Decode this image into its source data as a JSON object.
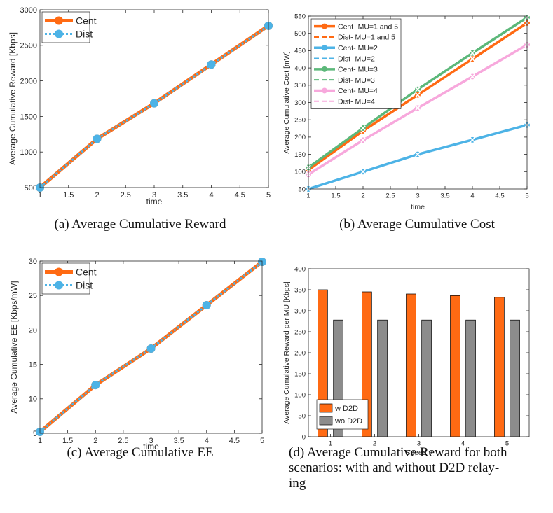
{
  "captions": {
    "a": "(a) Average Cumulative Reward",
    "b": "(b) Average Cumulative Cost",
    "c": "(c) Average Cumulative EE",
    "d_line1": "(d) Average Cumulative Reward for both",
    "d_line2": "scenarios: with and without D2D relay-",
    "d_line3": "ing"
  },
  "chart_data": [
    {
      "id": "a",
      "type": "line",
      "xlabel": "time",
      "ylabel": "Average Cumulative Reward [Kbps]",
      "xlim": [
        1,
        5
      ],
      "ylim": [
        500,
        3000
      ],
      "xticks": [
        1,
        1.5,
        2,
        2.5,
        3,
        3.5,
        4,
        4.5,
        5
      ],
      "yticks": [
        500,
        1000,
        1500,
        2000,
        2500,
        3000
      ],
      "legend_position": "top-left",
      "series": [
        {
          "name": "Cent",
          "color": "#ff6a13",
          "style": "solid",
          "marker": "circle",
          "x": [
            1,
            2,
            3,
            4,
            5
          ],
          "y": [
            500,
            1185,
            1685,
            2230,
            2775
          ]
        },
        {
          "name": "Dist",
          "color": "#4db3e6",
          "style": "dotted",
          "marker": "circle",
          "x": [
            1,
            2,
            3,
            4,
            5
          ],
          "y": [
            500,
            1185,
            1685,
            2230,
            2775
          ]
        }
      ]
    },
    {
      "id": "b",
      "type": "line",
      "xlabel": "time",
      "ylabel": "Average Cumulative Cost [mW]",
      "xlim": [
        1,
        5
      ],
      "ylim": [
        50,
        550
      ],
      "xticks": [
        1,
        1.5,
        2,
        2.5,
        3,
        3.5,
        4,
        4.5,
        5
      ],
      "yticks": [
        50,
        100,
        150,
        200,
        250,
        300,
        350,
        400,
        450,
        500,
        550
      ],
      "legend_position": "top-left",
      "series": [
        {
          "name": "Cent- MU=1 and 5",
          "color": "#ff6a13",
          "style": "solid",
          "marker": "circle",
          "x": [
            1,
            2,
            3,
            4,
            5
          ],
          "y": [
            105,
            218,
            322,
            426,
            530
          ]
        },
        {
          "name": "Dist- MU=1 and 5",
          "color": "#ff6a13",
          "style": "dashed",
          "marker": "x",
          "x": [
            1,
            2,
            3,
            4,
            5
          ],
          "y": [
            105,
            218,
            322,
            426,
            530
          ]
        },
        {
          "name": "Cent- MU=2",
          "color": "#4db3e6",
          "style": "solid",
          "marker": "circle",
          "x": [
            1,
            2,
            3,
            4,
            5
          ],
          "y": [
            50,
            100,
            150,
            192,
            235
          ]
        },
        {
          "name": "Dist- MU=2",
          "color": "#4db3e6",
          "style": "dashed",
          "marker": "x",
          "x": [
            1,
            2,
            3,
            4,
            5
          ],
          "y": [
            50,
            100,
            150,
            192,
            235
          ]
        },
        {
          "name": "Cent- MU=3",
          "color": "#5cb87a",
          "style": "solid",
          "marker": "circle",
          "x": [
            1,
            2,
            3,
            4,
            5
          ],
          "y": [
            112,
            226,
            338,
            443,
            546
          ]
        },
        {
          "name": "Dist- MU=3",
          "color": "#5cb87a",
          "style": "dashed",
          "marker": "x",
          "x": [
            1,
            2,
            3,
            4,
            5
          ],
          "y": [
            112,
            226,
            338,
            443,
            546
          ]
        },
        {
          "name": "Cent- MU=4",
          "color": "#f7a8dc",
          "style": "solid",
          "marker": "circle",
          "x": [
            1,
            2,
            3,
            4,
            5
          ],
          "y": [
            92,
            191,
            284,
            375,
            467
          ]
        },
        {
          "name": "Dist- MU=4",
          "color": "#f7a8dc",
          "style": "dashed",
          "marker": "x",
          "x": [
            1,
            2,
            3,
            4,
            5
          ],
          "y": [
            92,
            191,
            284,
            375,
            467
          ]
        }
      ]
    },
    {
      "id": "c",
      "type": "line",
      "xlabel": "time",
      "ylabel": "Average Cumulative EE [Kbps/mW]",
      "xlim": [
        1,
        5
      ],
      "ylim": [
        5,
        30
      ],
      "xticks": [
        1,
        1.5,
        2,
        2.5,
        3,
        3.5,
        4,
        4.5,
        5
      ],
      "yticks": [
        5,
        10,
        15,
        20,
        25,
        30
      ],
      "legend_position": "top-left",
      "series": [
        {
          "name": "Cent",
          "color": "#ff6a13",
          "style": "solid",
          "marker": "circle",
          "x": [
            1,
            2,
            3,
            4,
            5
          ],
          "y": [
            5.2,
            12.0,
            17.3,
            23.6,
            29.9
          ]
        },
        {
          "name": "Dist",
          "color": "#4db3e6",
          "style": "dotted",
          "marker": "circle",
          "x": [
            1,
            2,
            3,
            4,
            5
          ],
          "y": [
            5.2,
            12.0,
            17.3,
            23.6,
            29.9
          ]
        }
      ]
    },
    {
      "id": "d",
      "type": "bar",
      "xlabel": "Speed v",
      "ylabel": "Average Cumulative Reward per MU [Kbps]",
      "categories": [
        "1",
        "2",
        "3",
        "4",
        "5"
      ],
      "ylim": [
        0,
        400
      ],
      "yticks": [
        0,
        50,
        100,
        150,
        200,
        250,
        300,
        350,
        400
      ],
      "legend_position": "bottom-left",
      "series": [
        {
          "name": "w D2D",
          "color": "#ff6a13",
          "values": [
            350,
            345,
            340,
            336,
            332
          ]
        },
        {
          "name": "wo D2D",
          "color": "#8c8c8c",
          "values": [
            278,
            278,
            278,
            278,
            278
          ]
        }
      ]
    }
  ]
}
